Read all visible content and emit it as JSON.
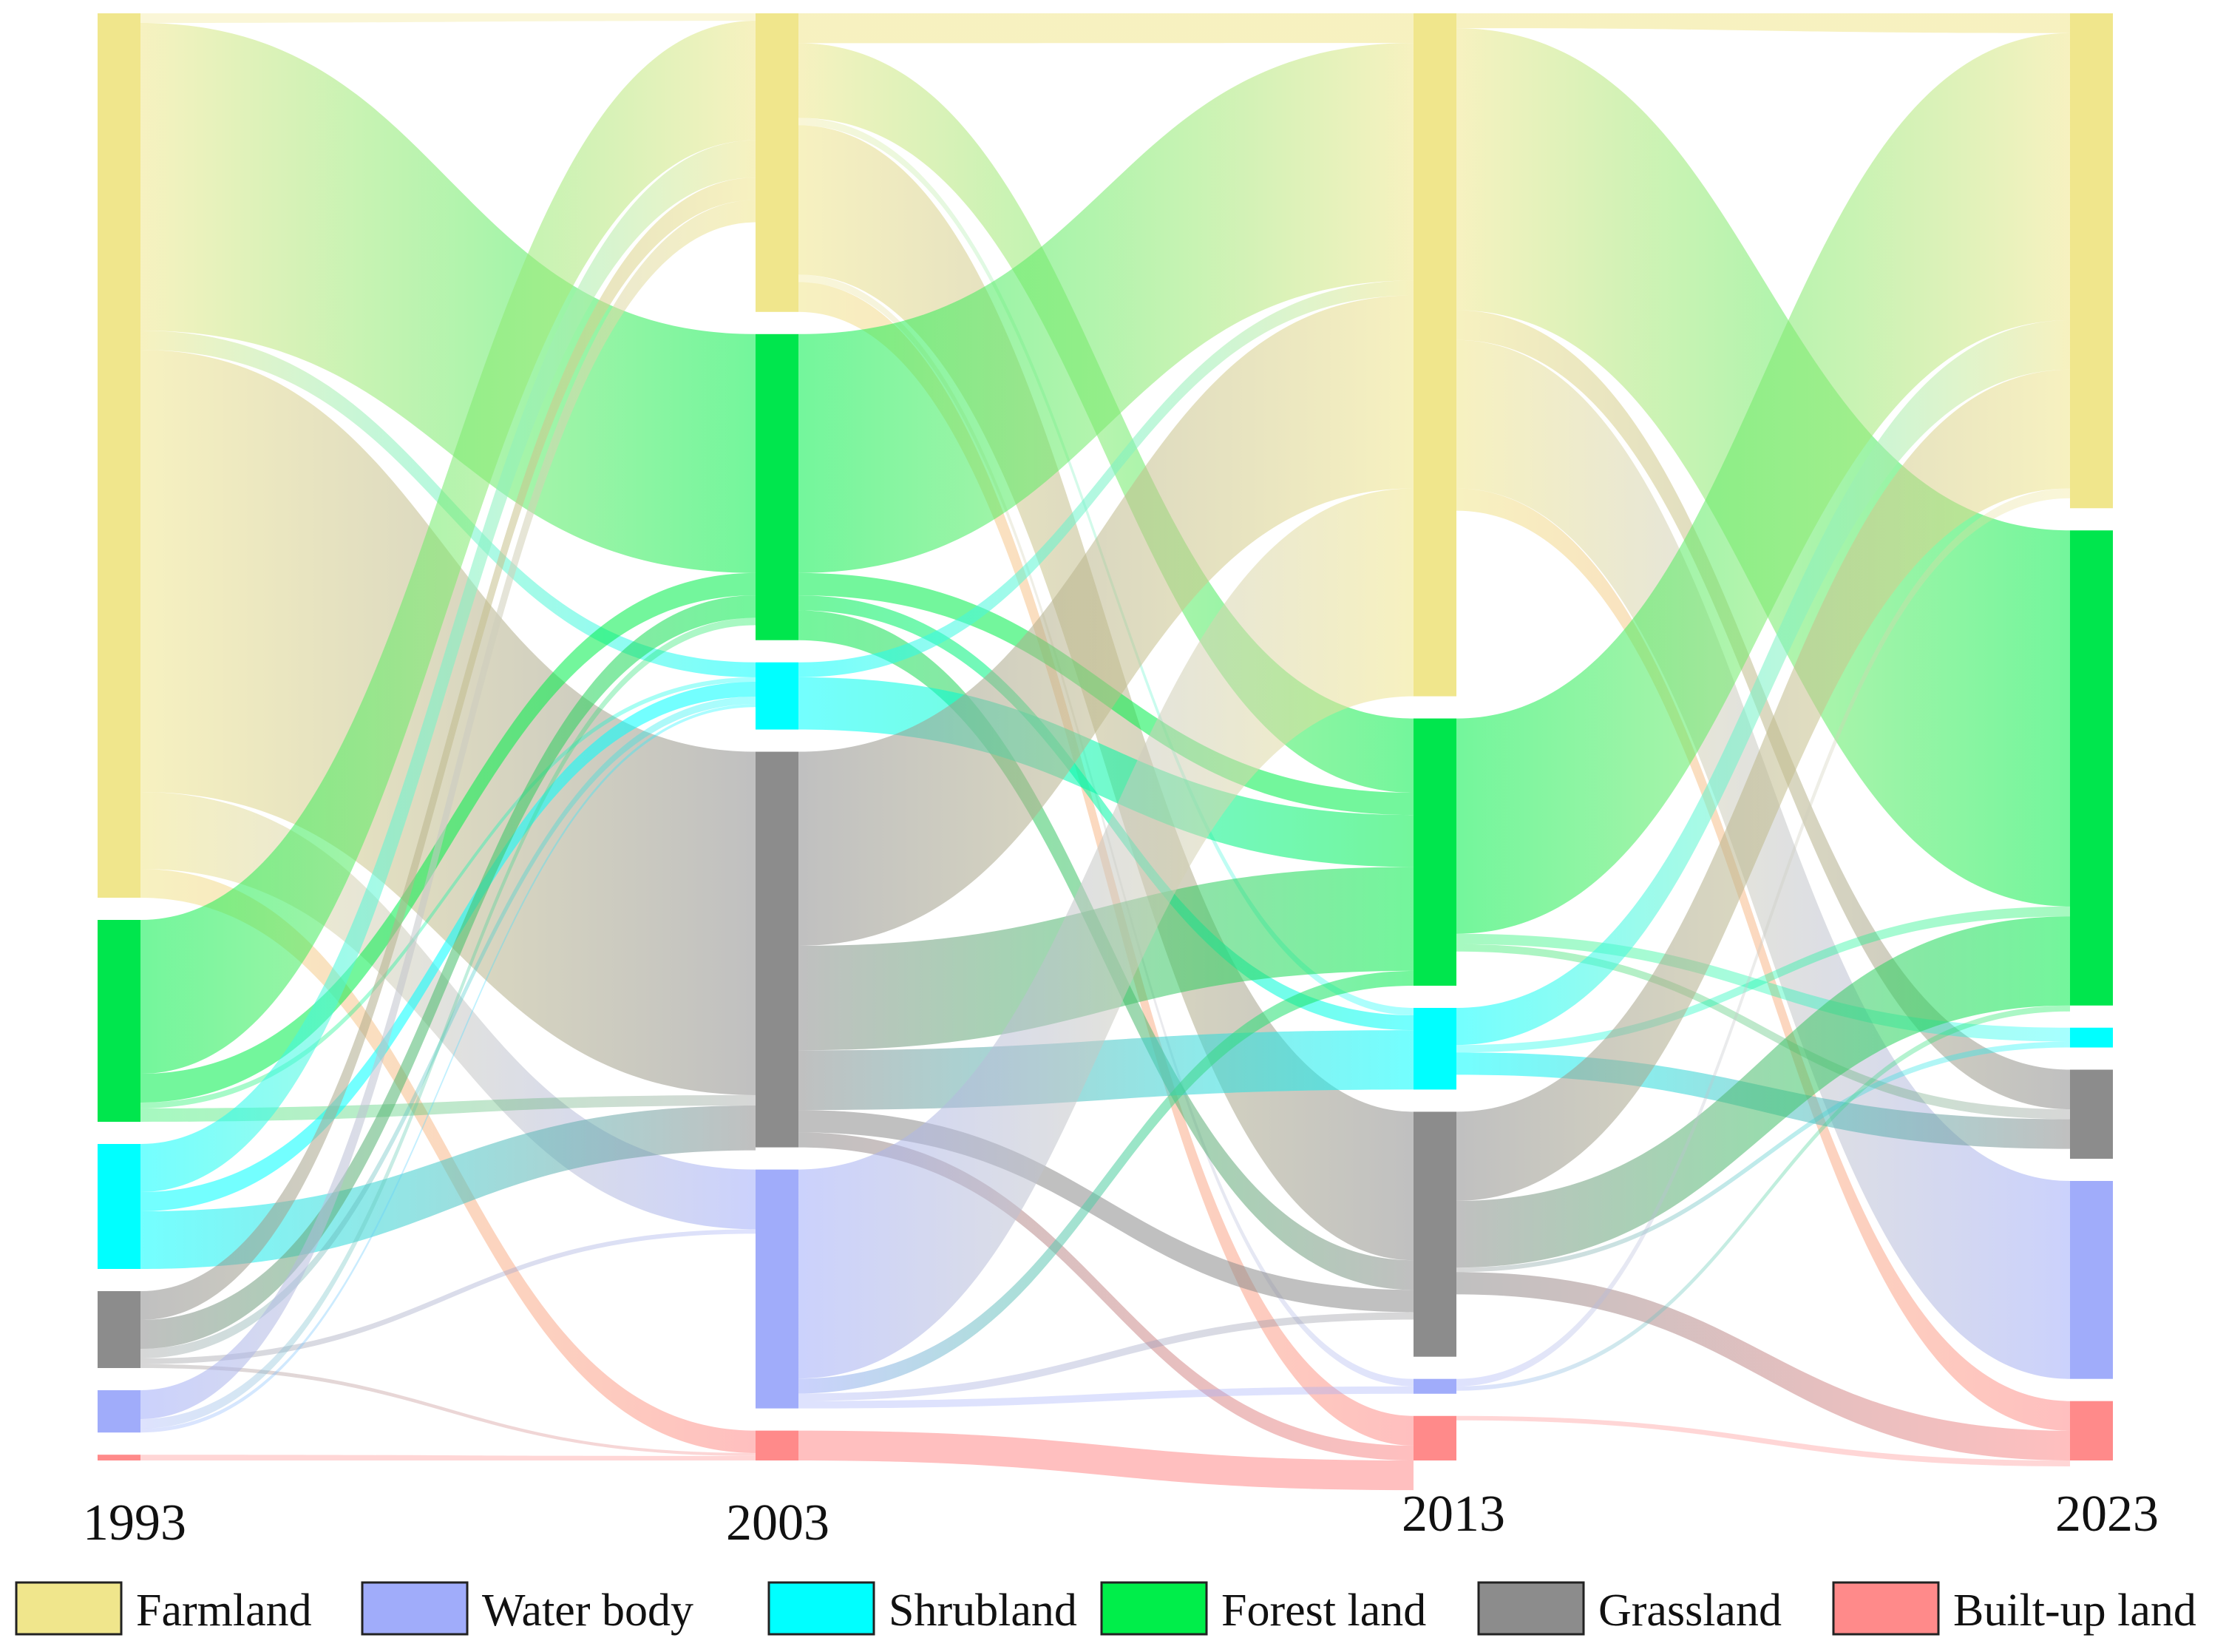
{
  "chart_data": {
    "type": "sankey",
    "years": [
      "1993",
      "2003",
      "2013",
      "2023"
    ],
    "categories": [
      {
        "key": "farmland",
        "name": "Farmland",
        "color": "#f0e68c"
      },
      {
        "key": "water",
        "name": "Water body",
        "color": "#a0acfa"
      },
      {
        "key": "shrub",
        "name": "Shrubland",
        "color": "#00ffff"
      },
      {
        "key": "forest",
        "name": "Forest land",
        "color": "#00ee4a"
      },
      {
        "key": "grass",
        "name": "Grassland",
        "color": "#8c8c8c"
      },
      {
        "key": "built",
        "name": "Built-up land",
        "color": "#ff8a8a"
      }
    ],
    "node_values": [
      {
        "year": "1993",
        "farmland": 46,
        "forest": 10.5,
        "shrub": 6.5,
        "grass": 4,
        "water": 2.2,
        "built": 0.3
      },
      {
        "year": "2003",
        "farmland": 20,
        "forest": 20.5,
        "shrub": 4.5,
        "grass": 26.5,
        "water": 16,
        "built": 2
      },
      {
        "year": "2013",
        "farmland": 46,
        "forest": 18,
        "shrub": 5.5,
        "grass": 16.5,
        "water": 1,
        "built": 3
      },
      {
        "year": "2023",
        "farmland": 25,
        "forest": 24,
        "shrub": 1,
        "grass": 4.5,
        "water": 10,
        "built": 3
      }
    ],
    "flows": [
      {
        "period": "1993-2003",
        "from": "farmland",
        "to": "farmland",
        "value": 0.5
      },
      {
        "period": "1993-2003",
        "from": "farmland",
        "to": "forest",
        "value": 16
      },
      {
        "period": "1993-2003",
        "from": "farmland",
        "to": "shrub",
        "value": 1
      },
      {
        "period": "1993-2003",
        "from": "farmland",
        "to": "grass",
        "value": 23
      },
      {
        "period": "1993-2003",
        "from": "farmland",
        "to": "water",
        "value": 4
      },
      {
        "period": "1993-2003",
        "from": "farmland",
        "to": "built",
        "value": 1.5
      },
      {
        "period": "1993-2003",
        "from": "forest",
        "to": "farmland",
        "value": 8
      },
      {
        "period": "1993-2003",
        "from": "forest",
        "to": "forest",
        "value": 1.5
      },
      {
        "period": "1993-2003",
        "from": "forest",
        "to": "grass",
        "value": 0.7
      },
      {
        "period": "1993-2003",
        "from": "forest",
        "to": "shrub",
        "value": 0.3
      },
      {
        "period": "1993-2003",
        "from": "shrub",
        "to": "farmland",
        "value": 2.5
      },
      {
        "period": "1993-2003",
        "from": "shrub",
        "to": "grass",
        "value": 3
      },
      {
        "period": "1993-2003",
        "from": "shrub",
        "to": "shrub",
        "value": 1
      },
      {
        "period": "1993-2003",
        "from": "grass",
        "to": "farmland",
        "value": 1.5
      },
      {
        "period": "1993-2003",
        "from": "grass",
        "to": "forest",
        "value": 1.5
      },
      {
        "period": "1993-2003",
        "from": "grass",
        "to": "shrub",
        "value": 0.5
      },
      {
        "period": "1993-2003",
        "from": "grass",
        "to": "water",
        "value": 0.3
      },
      {
        "period": "1993-2003",
        "from": "grass",
        "to": "built",
        "value": 0.2
      },
      {
        "period": "1993-2003",
        "from": "water",
        "to": "farmland",
        "value": 1.5
      },
      {
        "period": "1993-2003",
        "from": "water",
        "to": "forest",
        "value": 0.5
      },
      {
        "period": "1993-2003",
        "from": "water",
        "to": "shrub",
        "value": 0.2
      },
      {
        "period": "1993-2003",
        "from": "built",
        "to": "built",
        "value": 0.3
      },
      {
        "period": "2003-2013",
        "from": "farmland",
        "to": "farmland",
        "value": 2
      },
      {
        "period": "2003-2013",
        "from": "farmland",
        "to": "forest",
        "value": 5
      },
      {
        "period": "2003-2013",
        "from": "farmland",
        "to": "shrub",
        "value": 0.5
      },
      {
        "period": "2003-2013",
        "from": "farmland",
        "to": "grass",
        "value": 10
      },
      {
        "period": "2003-2013",
        "from": "farmland",
        "to": "water",
        "value": 0.5
      },
      {
        "period": "2003-2013",
        "from": "farmland",
        "to": "built",
        "value": 2
      },
      {
        "period": "2003-2013",
        "from": "forest",
        "to": "farmland",
        "value": 16
      },
      {
        "period": "2003-2013",
        "from": "forest",
        "to": "forest",
        "value": 1.5
      },
      {
        "period": "2003-2013",
        "from": "forest",
        "to": "shrub",
        "value": 1
      },
      {
        "period": "2003-2013",
        "from": "forest",
        "to": "grass",
        "value": 2
      },
      {
        "period": "2003-2013",
        "from": "shrub",
        "to": "farmland",
        "value": 1
      },
      {
        "period": "2003-2013",
        "from": "shrub",
        "to": "forest",
        "value": 3.5
      },
      {
        "period": "2003-2013",
        "from": "grass",
        "to": "farmland",
        "value": 13
      },
      {
        "period": "2003-2013",
        "from": "grass",
        "to": "forest",
        "value": 7
      },
      {
        "period": "2003-2013",
        "from": "grass",
        "to": "shrub",
        "value": 4
      },
      {
        "period": "2003-2013",
        "from": "grass",
        "to": "grass",
        "value": 1.5
      },
      {
        "period": "2003-2013",
        "from": "grass",
        "to": "built",
        "value": 1
      },
      {
        "period": "2003-2013",
        "from": "water",
        "to": "farmland",
        "value": 14
      },
      {
        "period": "2003-2013",
        "from": "water",
        "to": "forest",
        "value": 1
      },
      {
        "period": "2003-2013",
        "from": "water",
        "to": "grass",
        "value": 0.5
      },
      {
        "period": "2003-2013",
        "from": "water",
        "to": "water",
        "value": 0.5
      },
      {
        "period": "2003-2013",
        "from": "built",
        "to": "built",
        "value": 2
      },
      {
        "period": "2013-2023",
        "from": "farmland",
        "to": "farmland",
        "value": 1
      },
      {
        "period": "2013-2023",
        "from": "farmland",
        "to": "forest",
        "value": 19
      },
      {
        "period": "2013-2023",
        "from": "farmland",
        "to": "grass",
        "value": 2
      },
      {
        "period": "2013-2023",
        "from": "farmland",
        "to": "water",
        "value": 10
      },
      {
        "period": "2013-2023",
        "from": "farmland",
        "to": "built",
        "value": 1.5
      },
      {
        "period": "2013-2023",
        "from": "forest",
        "to": "farmland",
        "value": 14.5
      },
      {
        "period": "2013-2023",
        "from": "forest",
        "to": "shrub",
        "value": 0.7
      },
      {
        "period": "2013-2023",
        "from": "forest",
        "to": "grass",
        "value": 0.5
      },
      {
        "period": "2013-2023",
        "from": "shrub",
        "to": "farmland",
        "value": 2.5
      },
      {
        "period": "2013-2023",
        "from": "shrub",
        "to": "grass",
        "value": 1.5
      },
      {
        "period": "2013-2023",
        "from": "shrub",
        "to": "forest",
        "value": 0.5
      },
      {
        "period": "2013-2023",
        "from": "grass",
        "to": "farmland",
        "value": 6
      },
      {
        "period": "2013-2023",
        "from": "grass",
        "to": "forest",
        "value": 4.5
      },
      {
        "period": "2013-2023",
        "from": "grass",
        "to": "shrub",
        "value": 0.3
      },
      {
        "period": "2013-2023",
        "from": "grass",
        "to": "built",
        "value": 1.5
      },
      {
        "period": "2013-2023",
        "from": "water",
        "to": "farmland",
        "value": 0.5
      },
      {
        "period": "2013-2023",
        "from": "water",
        "to": "forest",
        "value": 0.3
      },
      {
        "period": "2013-2023",
        "from": "built",
        "to": "built",
        "value": 0.3
      }
    ],
    "legend": {
      "position": "bottom"
    },
    "title": "",
    "xlabel": "",
    "ylabel": ""
  }
}
